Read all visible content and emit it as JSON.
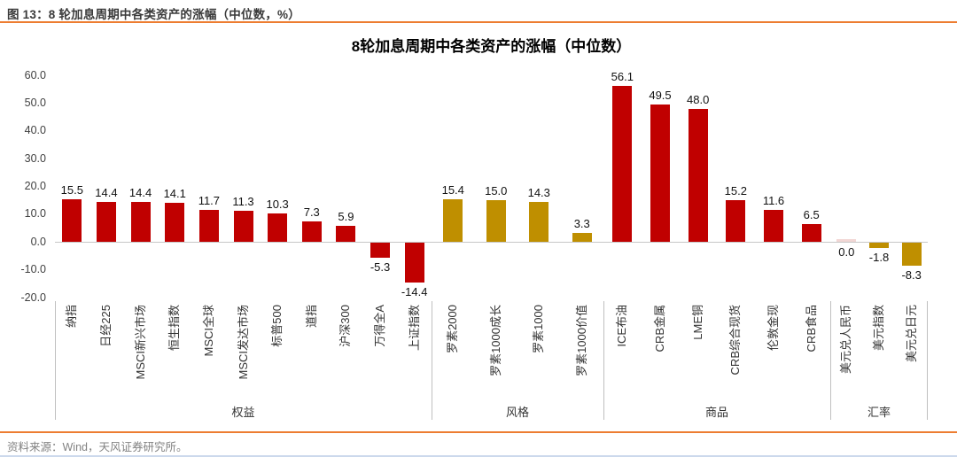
{
  "header": {
    "caption": "图 13：8 轮加息周期中各类资产的涨幅（中位数，%）"
  },
  "footer": {
    "source": "资料来源：Wind，天风证券研究所。"
  },
  "colors": {
    "accent_orange": "#ed7d31",
    "bar_red": "#c00000",
    "bar_gold": "#bf8f00",
    "bar_pale": "#f2d7d5",
    "axis_gray": "#bfbfbf"
  },
  "chart_data": {
    "type": "bar",
    "title": "8轮加息周期中各类资产的涨幅（中位数）",
    "xlabel": "",
    "ylabel": "",
    "ylim": [
      -20,
      60
    ],
    "ytick_labels": [
      "60.0",
      "50.0",
      "40.0",
      "30.0",
      "20.0",
      "10.0",
      "0.0",
      "-10.0",
      "-20.0"
    ],
    "grid": false,
    "legend": "none",
    "groups": [
      {
        "name": "权益",
        "bars": [
          {
            "label": "纳指",
            "value": 15.5,
            "display": "15.5",
            "color": "bar_red"
          },
          {
            "label": "日经225",
            "value": 14.4,
            "display": "14.4",
            "color": "bar_red"
          },
          {
            "label": "MSCI新兴市场",
            "value": 14.4,
            "display": "14.4",
            "color": "bar_red"
          },
          {
            "label": "恒生指数",
            "value": 14.1,
            "display": "14.1",
            "color": "bar_red"
          },
          {
            "label": "MSCI全球",
            "value": 11.7,
            "display": "11.7",
            "color": "bar_red"
          },
          {
            "label": "MSCI发达市场",
            "value": 11.3,
            "display": "11.3",
            "color": "bar_red"
          },
          {
            "label": "标普500",
            "value": 10.3,
            "display": "10.3",
            "color": "bar_red"
          },
          {
            "label": "道指",
            "value": 7.3,
            "display": "7.3",
            "color": "bar_red"
          },
          {
            "label": "沪深300",
            "value": 5.9,
            "display": "5.9",
            "color": "bar_red"
          },
          {
            "label": "万得全A",
            "value": -5.3,
            "display": "-5.3",
            "color": "bar_red"
          },
          {
            "label": "上证指数",
            "value": -14.4,
            "display": "-14.4",
            "color": "bar_red"
          }
        ]
      },
      {
        "name": "风格",
        "bars": [
          {
            "label": "罗素2000",
            "value": 15.4,
            "display": "15.4",
            "color": "bar_gold"
          },
          {
            "label": "罗素1000成长",
            "value": 15.0,
            "display": "15.0",
            "color": "bar_gold"
          },
          {
            "label": "罗素1000",
            "value": 14.3,
            "display": "14.3",
            "color": "bar_gold"
          },
          {
            "label": "罗素1000价值",
            "value": 3.3,
            "display": "3.3",
            "color": "bar_gold"
          }
        ]
      },
      {
        "name": "商品",
        "bars": [
          {
            "label": "ICE布油",
            "value": 56.1,
            "display": "56.1",
            "color": "bar_red"
          },
          {
            "label": "CRB金属",
            "value": 49.5,
            "display": "49.5",
            "color": "bar_red"
          },
          {
            "label": "LME铜",
            "value": 48.0,
            "display": "48.0",
            "color": "bar_red"
          },
          {
            "label": "CRB综合现货",
            "value": 15.2,
            "display": "15.2",
            "color": "bar_red"
          },
          {
            "label": "伦敦金现",
            "value": 11.6,
            "display": "11.6",
            "color": "bar_red"
          },
          {
            "label": "CRB食品",
            "value": 6.5,
            "display": "6.5",
            "color": "bar_red"
          }
        ]
      },
      {
        "name": "汇率",
        "bars": [
          {
            "label": "美元兑人民币",
            "value": 0.0,
            "display": "0.0",
            "color": "bar_pale"
          },
          {
            "label": "美元指数",
            "value": -1.8,
            "display": "-1.8",
            "color": "bar_gold"
          },
          {
            "label": "美元兑日元",
            "value": -8.3,
            "display": "-8.3",
            "color": "bar_gold"
          }
        ]
      }
    ]
  }
}
